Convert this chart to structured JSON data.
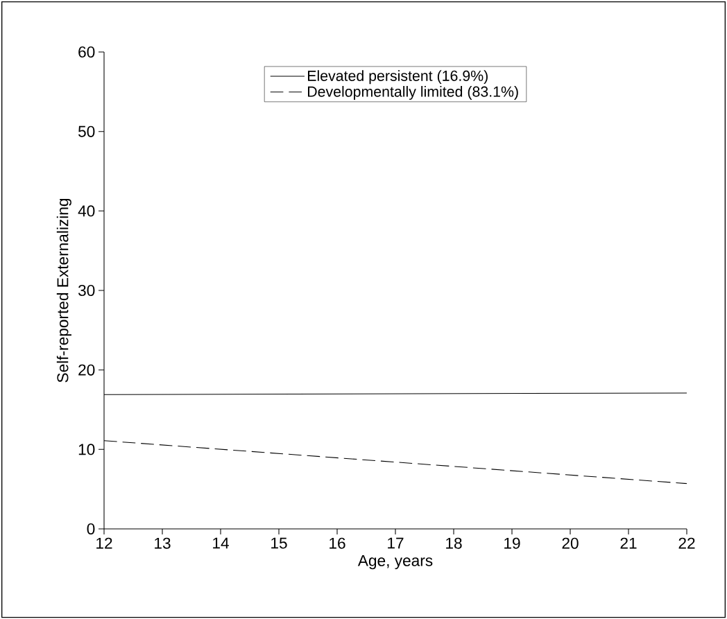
{
  "chart_data": {
    "type": "line",
    "xlabel": "Age, years",
    "ylabel": "Self-reported Externalizing",
    "x": [
      12,
      22
    ],
    "series": [
      {
        "name": "Elevated persistent (16.9%)",
        "color": "#000000",
        "values": [
          16.9,
          17.1
        ],
        "line_style": "solid"
      },
      {
        "name": "Developmentally limited (83.1%)",
        "color": "#000000",
        "values": [
          11.1,
          5.7
        ],
        "line_style": "dashed"
      }
    ],
    "xlim": [
      12,
      22
    ],
    "xticks": [
      12,
      13,
      14,
      15,
      16,
      17,
      18,
      19,
      20,
      21,
      22
    ],
    "ylim": [
      0,
      60
    ],
    "yticks": [
      0,
      10,
      20,
      30,
      40,
      50,
      60
    ],
    "legend": "top",
    "grid": false,
    "marker": "none"
  }
}
